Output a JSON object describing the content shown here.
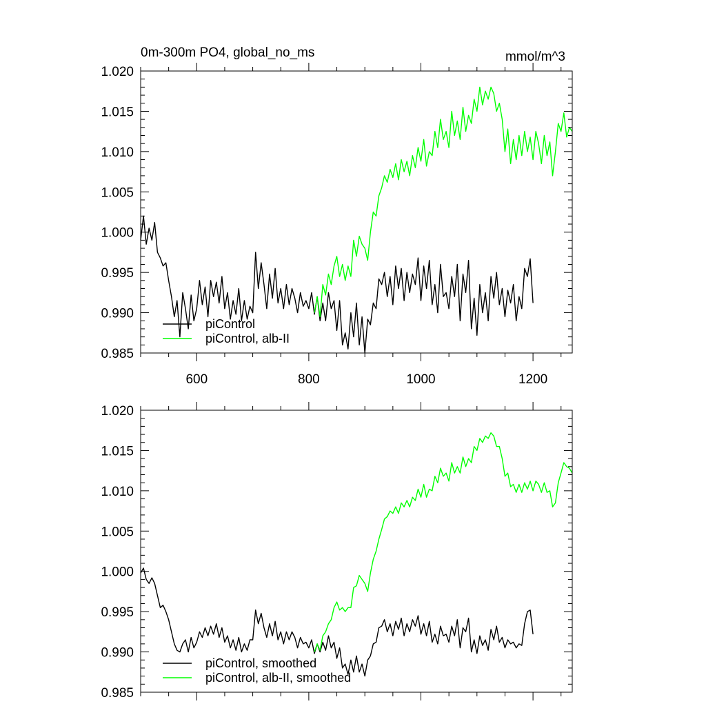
{
  "header": {
    "left_title": "0m-300m PO4, global_no_ms",
    "right_title": "mmol/m^3"
  },
  "chart_data": [
    {
      "type": "line",
      "xlim": [
        500,
        1270
      ],
      "ylim": [
        0.985,
        1.02
      ],
      "xticks": [
        600,
        800,
        1000,
        1200
      ],
      "xtick_labels": [
        "600",
        "800",
        "1000",
        "1200"
      ],
      "yticks": [
        0.985,
        0.99,
        0.995,
        1.0,
        1.005,
        1.01,
        1.015,
        1.02
      ],
      "ytick_labels": [
        "0.985",
        "0.990",
        "0.995",
        "1.000",
        "1.005",
        "1.010",
        "1.015",
        "1.020"
      ],
      "legend_position": "bottom-left",
      "series": [
        {
          "name": "piControl",
          "color": "#000000",
          "x": [
            500,
            505,
            510,
            515,
            520,
            525,
            530,
            535,
            540,
            545,
            550,
            555,
            560,
            565,
            570,
            575,
            580,
            585,
            590,
            595,
            600,
            605,
            610,
            615,
            620,
            625,
            630,
            635,
            640,
            645,
            650,
            655,
            660,
            665,
            670,
            675,
            680,
            685,
            690,
            695,
            700,
            705,
            710,
            715,
            720,
            725,
            730,
            735,
            740,
            745,
            750,
            755,
            760,
            765,
            770,
            775,
            780,
            785,
            790,
            795,
            800,
            805,
            810,
            815,
            820,
            825,
            830,
            835,
            840,
            845,
            850,
            855,
            860,
            865,
            870,
            875,
            880,
            885,
            890,
            895,
            900,
            905,
            910,
            915,
            920,
            925,
            930,
            935,
            940,
            945,
            950,
            955,
            960,
            965,
            970,
            975,
            980,
            985,
            990,
            995,
            1000,
            1005,
            1010,
            1015,
            1020,
            1025,
            1030,
            1035,
            1040,
            1045,
            1050,
            1055,
            1060,
            1065,
            1070,
            1075,
            1080,
            1085,
            1090,
            1095,
            1100,
            1105,
            1110,
            1115,
            1120,
            1125,
            1130,
            1135,
            1140,
            1145,
            1150,
            1155,
            1160,
            1165,
            1170,
            1175,
            1180,
            1185,
            1190,
            1195,
            1200
          ],
          "values": [
            0.999,
            1.002,
            0.9985,
            1.0005,
            0.999,
            1.0012,
            0.9975,
            0.9968,
            0.9958,
            0.9962,
            0.994,
            0.992,
            0.9895,
            0.9915,
            0.987,
            0.9925,
            0.9905,
            0.988,
            0.9922,
            0.989,
            0.9905,
            0.994,
            0.991,
            0.9932,
            0.9895,
            0.994,
            0.992,
            0.9938,
            0.9912,
            0.9945,
            0.9905,
            0.9925,
            0.9892,
            0.9915,
            0.9898,
            0.993,
            0.989,
            0.9915,
            0.9892,
            0.9908,
            0.99,
            0.9975,
            0.993,
            0.9962,
            0.9935,
            0.9905,
            0.9948,
            0.9918,
            0.9955,
            0.9912,
            0.993,
            0.9905,
            0.9935,
            0.991,
            0.993,
            0.9918,
            0.99,
            0.9925,
            0.9908,
            0.9915,
            0.9905,
            0.9925,
            0.9898,
            0.992,
            0.989,
            0.9912,
            0.989,
            0.9925,
            0.9905,
            0.9915,
            0.9878,
            0.9915,
            0.986,
            0.9875,
            0.9855,
            0.99,
            0.987,
            0.9912,
            0.986,
            0.9895,
            0.985,
            0.9892,
            0.9885,
            0.9912,
            0.9905,
            0.9942,
            0.9935,
            0.995,
            0.992,
            0.9945,
            0.991,
            0.9958,
            0.993,
            0.9955,
            0.9915,
            0.995,
            0.9925,
            0.9948,
            0.9935,
            0.9968,
            0.9915,
            0.9958,
            0.993,
            0.9965,
            0.991,
            0.9935,
            0.99,
            0.996,
            0.992,
            0.9925,
            0.9905,
            0.9945,
            0.992,
            0.996,
            0.989,
            0.9948,
            0.9925,
            0.9965,
            0.988,
            0.9918,
            0.9872,
            0.9935,
            0.99,
            0.9925,
            0.989,
            0.9945,
            0.9918,
            0.995,
            0.991,
            0.993,
            0.9895,
            0.9928,
            0.9912,
            0.9935,
            0.989,
            0.992,
            0.9905,
            0.9955,
            0.9945,
            0.9967,
            0.9912
          ]
        },
        {
          "name": "piControl, alb-II",
          "color": "#00ff00",
          "x": [
            810,
            815,
            820,
            825,
            830,
            835,
            840,
            845,
            850,
            855,
            860,
            865,
            870,
            875,
            880,
            885,
            890,
            895,
            900,
            905,
            910,
            915,
            920,
            925,
            930,
            935,
            940,
            945,
            950,
            955,
            960,
            965,
            970,
            975,
            980,
            985,
            990,
            995,
            1000,
            1005,
            1010,
            1015,
            1020,
            1025,
            1030,
            1035,
            1040,
            1045,
            1050,
            1055,
            1060,
            1065,
            1070,
            1075,
            1080,
            1085,
            1090,
            1095,
            1100,
            1105,
            1110,
            1115,
            1120,
            1125,
            1130,
            1135,
            1140,
            1145,
            1150,
            1155,
            1160,
            1165,
            1170,
            1175,
            1180,
            1185,
            1190,
            1195,
            1200,
            1205,
            1210,
            1215,
            1220,
            1225,
            1230,
            1235,
            1240,
            1245,
            1250,
            1255,
            1260,
            1265,
            1270
          ],
          "values": [
            0.99,
            0.992,
            0.9895,
            0.9935,
            0.9922,
            0.9948,
            0.9935,
            0.9958,
            0.997,
            0.9945,
            0.996,
            0.994,
            0.9958,
            0.9945,
            0.999,
            0.997,
            0.9995,
            0.9985,
            0.998,
            0.9965,
            1.0,
            1.0025,
            1.002,
            1.0045,
            1.0055,
            1.007,
            1.0062,
            1.0078,
            1.0068,
            1.0085,
            1.0065,
            1.009,
            1.0075,
            1.0088,
            1.007,
            1.0095,
            1.008,
            1.0105,
            1.0088,
            1.0115,
            1.0082,
            1.01,
            1.0095,
            1.0125,
            1.0105,
            1.014,
            1.0115,
            1.0125,
            1.0105,
            1.015,
            1.012,
            1.0138,
            1.0115,
            1.0155,
            1.0125,
            1.0145,
            1.0135,
            1.0165,
            1.015,
            1.018,
            1.0158,
            1.0175,
            1.0165,
            1.018,
            1.0172,
            1.015,
            1.016,
            1.014,
            1.01,
            1.0128,
            1.0085,
            1.0115,
            1.009,
            1.012,
            1.0095,
            1.0125,
            1.01,
            1.0118,
            1.009,
            1.0125,
            1.011,
            1.0085,
            1.012,
            1.0095,
            1.0112,
            1.007,
            1.01,
            1.0135,
            1.0125,
            1.0148,
            1.0118,
            1.013,
            1.0125
          ]
        }
      ]
    },
    {
      "type": "line",
      "xlim": [
        500,
        1270
      ],
      "ylim": [
        0.985,
        1.02
      ],
      "xticks": [
        600,
        800,
        1000,
        1200
      ],
      "yticks": [
        0.985,
        0.99,
        0.995,
        1.0,
        1.005,
        1.01,
        1.015,
        1.02
      ],
      "ytick_labels": [
        "0.985",
        "0.990",
        "0.995",
        "1.000",
        "1.005",
        "1.010",
        "1.015",
        "1.020"
      ],
      "legend_position": "bottom-left",
      "series": [
        {
          "name": "piControl, smoothed",
          "color": "#000000",
          "x": [
            500,
            505,
            510,
            515,
            520,
            525,
            530,
            535,
            540,
            545,
            550,
            555,
            560,
            565,
            570,
            575,
            580,
            585,
            590,
            595,
            600,
            605,
            610,
            615,
            620,
            625,
            630,
            635,
            640,
            645,
            650,
            655,
            660,
            665,
            670,
            675,
            680,
            685,
            690,
            695,
            700,
            705,
            710,
            715,
            720,
            725,
            730,
            735,
            740,
            745,
            750,
            755,
            760,
            765,
            770,
            775,
            780,
            785,
            790,
            795,
            800,
            805,
            810,
            815,
            820,
            825,
            830,
            835,
            840,
            845,
            850,
            855,
            860,
            865,
            870,
            875,
            880,
            885,
            890,
            895,
            900,
            905,
            910,
            915,
            920,
            925,
            930,
            935,
            940,
            945,
            950,
            955,
            960,
            965,
            970,
            975,
            980,
            985,
            990,
            995,
            1000,
            1005,
            1010,
            1015,
            1020,
            1025,
            1030,
            1035,
            1040,
            1045,
            1050,
            1055,
            1060,
            1065,
            1070,
            1075,
            1080,
            1085,
            1090,
            1095,
            1100,
            1105,
            1110,
            1115,
            1120,
            1125,
            1130,
            1135,
            1140,
            1145,
            1150,
            1155,
            1160,
            1165,
            1170,
            1175,
            1180,
            1185,
            1190,
            1195,
            1200
          ],
          "values": [
            0.9998,
            1.0004,
            0.999,
            0.9985,
            0.9992,
            0.9985,
            0.997,
            0.9955,
            0.9958,
            0.995,
            0.994,
            0.9925,
            0.991,
            0.9902,
            0.99,
            0.991,
            0.9915,
            0.99,
            0.9918,
            0.9905,
            0.9912,
            0.9925,
            0.9918,
            0.993,
            0.992,
            0.9932,
            0.9922,
            0.9935,
            0.9918,
            0.993,
            0.9912,
            0.992,
            0.9905,
            0.9915,
            0.9902,
            0.9918,
            0.99,
            0.991,
            0.9902,
            0.9915,
            0.9915,
            0.9952,
            0.9935,
            0.9948,
            0.993,
            0.9918,
            0.9935,
            0.992,
            0.9938,
            0.9915,
            0.9925,
            0.991,
            0.9925,
            0.9915,
            0.9925,
            0.9918,
            0.9905,
            0.9918,
            0.991,
            0.9912,
            0.9905,
            0.9915,
            0.9898,
            0.991,
            0.99,
            0.9912,
            0.9902,
            0.992,
            0.9905,
            0.9912,
            0.9892,
            0.9905,
            0.988,
            0.9885,
            0.9872,
            0.989,
            0.9875,
            0.9895,
            0.9875,
            0.9885,
            0.987,
            0.989,
            0.9895,
            0.991,
            0.9912,
            0.993,
            0.9932,
            0.994,
            0.9925,
            0.9935,
            0.992,
            0.9938,
            0.9928,
            0.9942,
            0.992,
            0.9935,
            0.9925,
            0.994,
            0.9932,
            0.9945,
            0.9922,
            0.9935,
            0.992,
            0.9938,
            0.9912,
            0.9922,
            0.991,
            0.9932,
            0.992,
            0.9922,
            0.9912,
            0.9932,
            0.992,
            0.994,
            0.9905,
            0.993,
            0.9925,
            0.9942,
            0.99,
            0.9915,
            0.9898,
            0.992,
            0.9908,
            0.9915,
            0.9902,
            0.9928,
            0.9915,
            0.9932,
            0.9912,
            0.9918,
            0.9905,
            0.9915,
            0.991,
            0.9912,
            0.9905,
            0.991,
            0.9908,
            0.9935,
            0.995,
            0.9952,
            0.9922
          ]
        },
        {
          "name": "piControl, alb-II, smoothed",
          "color": "#00ff00",
          "x": [
            810,
            815,
            820,
            825,
            830,
            835,
            840,
            845,
            850,
            855,
            860,
            865,
            870,
            875,
            880,
            885,
            890,
            895,
            900,
            905,
            910,
            915,
            920,
            925,
            930,
            935,
            940,
            945,
            950,
            955,
            960,
            965,
            970,
            975,
            980,
            985,
            990,
            995,
            1000,
            1005,
            1010,
            1015,
            1020,
            1025,
            1030,
            1035,
            1040,
            1045,
            1050,
            1055,
            1060,
            1065,
            1070,
            1075,
            1080,
            1085,
            1090,
            1095,
            1100,
            1105,
            1110,
            1115,
            1120,
            1125,
            1130,
            1135,
            1140,
            1145,
            1150,
            1155,
            1160,
            1165,
            1170,
            1175,
            1180,
            1185,
            1190,
            1195,
            1200,
            1205,
            1210,
            1215,
            1220,
            1225,
            1230,
            1235,
            1240,
            1245,
            1250,
            1255,
            1260,
            1265,
            1270
          ],
          "values": [
            0.99,
            0.991,
            0.9902,
            0.992,
            0.9925,
            0.9935,
            0.994,
            0.9955,
            0.9962,
            0.9952,
            0.9955,
            0.995,
            0.9955,
            0.9955,
            0.998,
            0.9982,
            0.9995,
            0.999,
            0.9985,
            0.9975,
            0.9998,
            1.0015,
            1.0025,
            1.004,
            1.0052,
            1.0065,
            1.0068,
            1.0075,
            1.0072,
            1.008,
            1.0072,
            1.0085,
            1.008,
            1.0088,
            1.008,
            1.0092,
            1.0088,
            1.0102,
            1.0092,
            1.0108,
            1.0092,
            1.0102,
            1.01,
            1.0118,
            1.011,
            1.0128,
            1.0118,
            1.0122,
            1.0112,
            1.0135,
            1.0122,
            1.013,
            1.0122,
            1.0142,
            1.013,
            1.014,
            1.0135,
            1.0155,
            1.015,
            1.0165,
            1.016,
            1.0168,
            1.0165,
            1.0172,
            1.0168,
            1.0155,
            1.0155,
            1.014,
            1.0118,
            1.0122,
            1.0105,
            1.0108,
            1.0098,
            1.0108,
            1.0098,
            1.011,
            1.0102,
            1.0112,
            1.01,
            1.0112,
            1.0108,
            1.0098,
            1.011,
            1.0098,
            1.01,
            1.008,
            1.0085,
            1.011,
            1.0122,
            1.0135,
            1.013,
            1.0128,
            1.0122
          ]
        }
      ]
    }
  ]
}
